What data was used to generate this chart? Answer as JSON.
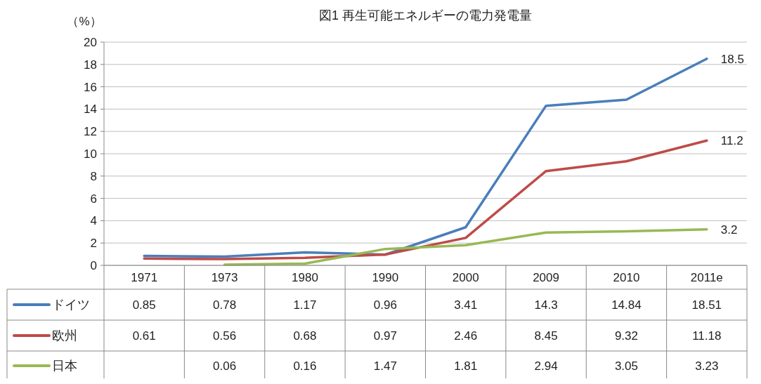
{
  "chart_data": {
    "type": "line",
    "title": "図1 再生可能エネルギーの電力発電量",
    "ylabel": "（%）",
    "categories": [
      "1971",
      "1973",
      "1980",
      "1990",
      "2000",
      "2009",
      "2010",
      "2011e"
    ],
    "ylim": [
      0,
      20
    ],
    "yticks": [
      0,
      2,
      4,
      6,
      8,
      10,
      12,
      14,
      16,
      18,
      20
    ],
    "grid": "y",
    "legend": "left",
    "data_labels": true,
    "series": [
      {
        "name": "ドイツ",
        "color": "#4a7ebb",
        "values": [
          0.85,
          0.78,
          1.17,
          0.96,
          3.41,
          14.3,
          14.84,
          18.51
        ]
      },
      {
        "name": "欧州",
        "color": "#be4b48",
        "values": [
          0.61,
          0.56,
          0.68,
          0.97,
          2.46,
          8.45,
          9.32,
          11.18
        ]
      },
      {
        "name": "日本",
        "color": "#98b954",
        "values": [
          null,
          0.06,
          0.16,
          1.47,
          1.81,
          2.94,
          3.05,
          3.23
        ]
      }
    ],
    "annotations": [
      {
        "text": "18.5",
        "x": "2011e",
        "y": 18.5
      },
      {
        "text": "11.2",
        "x": "2011e",
        "y": 11.2
      },
      {
        "text": "3.2",
        "x": "2011e",
        "y": 3.2
      }
    ]
  }
}
